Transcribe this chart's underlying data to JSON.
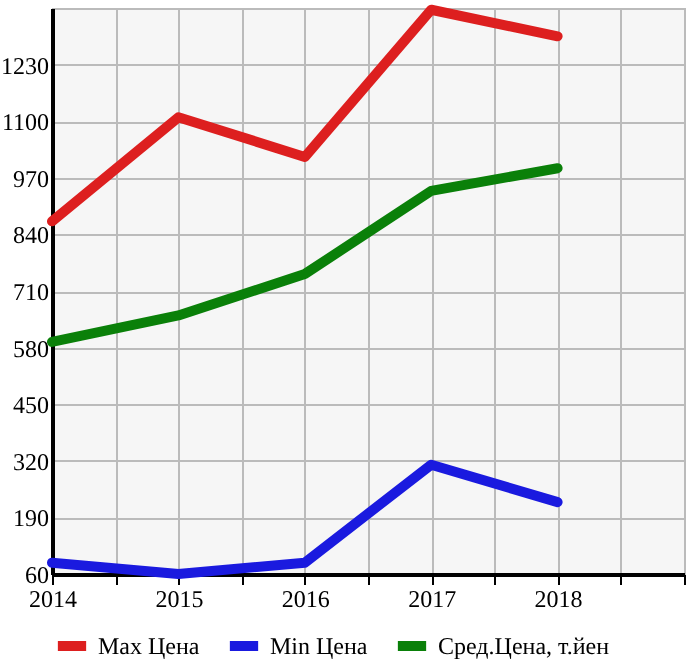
{
  "chart_data": {
    "type": "line",
    "x": [
      2014,
      2015,
      2016,
      2017,
      2018
    ],
    "series": [
      {
        "name": "Max Цена",
        "color": "#dd1f1f",
        "values": [
          870,
          1109,
          1018,
          1356,
          1295
        ]
      },
      {
        "name": "Min Цена",
        "color": "#1a1adf",
        "values": [
          86,
          60,
          86,
          311,
          225
        ]
      },
      {
        "name": "Сред.Цена, т.йен",
        "color": "#0a8009",
        "values": [
          593,
          654,
          749,
          940,
          992
        ]
      }
    ],
    "xlim": [
      2014,
      2019
    ],
    "xticks": [
      2014,
      {
        "value": 2014.5,
        "label": null
      },
      2015,
      {
        "value": 2015.5,
        "label": null
      },
      2016,
      {
        "value": 2016.5,
        "label": null
      },
      2017,
      {
        "value": 2017.5,
        "label": null
      },
      2018,
      {
        "value": 2018.5,
        "label": null
      },
      {
        "value": 2019,
        "label": null
      }
    ],
    "ylim": [
      60,
      1360
    ],
    "yticks": [
      60,
      190,
      320,
      450,
      580,
      710,
      840,
      970,
      1100,
      1230
    ],
    "grid": true,
    "legend": "bottom",
    "marker": "none",
    "line_style": "solid"
  }
}
